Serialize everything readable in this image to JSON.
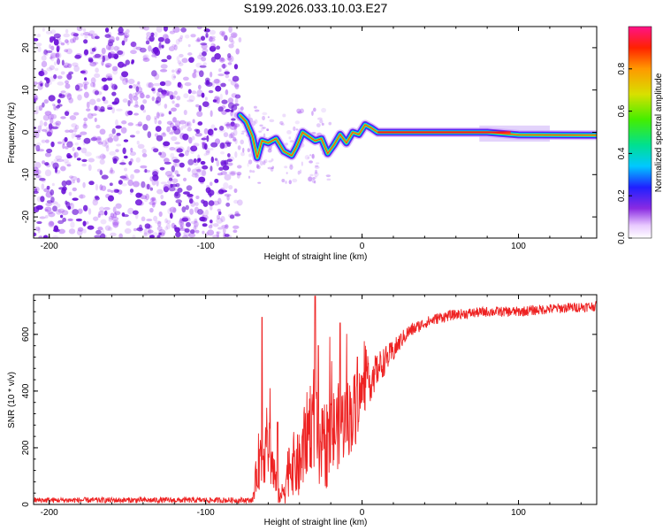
{
  "title": "S199.2026.033.10.03.E27",
  "colors": {
    "snr_line": "#ee2222",
    "speckle": "#9a3df0",
    "speckle_dark": "#6a10d8",
    "axis": "#000000"
  },
  "chart_data": [
    {
      "type": "heatmap",
      "title": "S199.2026.033.10.03.E27",
      "xlabel": "Height of straight line (km)",
      "ylabel": "Frequency (Hz)",
      "xlim": [
        -210,
        150
      ],
      "ylim": [
        -25,
        25
      ],
      "x_ticks": [
        -200,
        -100,
        0,
        100
      ],
      "y_ticks": [
        -20,
        -10,
        0,
        10,
        20
      ],
      "noise_region_x": [
        -210,
        -78
      ],
      "trace": [
        {
          "x": -78,
          "y": 4.0
        },
        {
          "x": -74,
          "y": 2.5
        },
        {
          "x": -70,
          "y": -1.0
        },
        {
          "x": -67,
          "y": -6.0
        },
        {
          "x": -64,
          "y": -2.0
        },
        {
          "x": -60,
          "y": -2.5
        },
        {
          "x": -55,
          "y": -1.5
        },
        {
          "x": -50,
          "y": -4.5
        },
        {
          "x": -45,
          "y": -5.5
        },
        {
          "x": -42,
          "y": -3.5
        },
        {
          "x": -38,
          "y": 0.0
        },
        {
          "x": -34,
          "y": -1.0
        },
        {
          "x": -30,
          "y": -2.0
        },
        {
          "x": -26,
          "y": -1.5
        },
        {
          "x": -22,
          "y": -5.0
        },
        {
          "x": -18,
          "y": -3.0
        },
        {
          "x": -14,
          "y": -0.5
        },
        {
          "x": -10,
          "y": -2.5
        },
        {
          "x": -6,
          "y": 0.0
        },
        {
          "x": -2,
          "y": -0.5
        },
        {
          "x": 2,
          "y": 1.8
        },
        {
          "x": 6,
          "y": 1.0
        },
        {
          "x": 10,
          "y": 0.0
        },
        {
          "x": 40,
          "y": 0.0
        },
        {
          "x": 80,
          "y": 0.0
        },
        {
          "x": 100,
          "y": -0.6
        },
        {
          "x": 150,
          "y": -0.7
        }
      ],
      "colorbar": {
        "label": "Normalized spectral amplitude",
        "range": [
          0,
          1
        ],
        "ticks": [
          0.0,
          0.2,
          0.4,
          0.6,
          0.8
        ],
        "tick_labels": [
          "0.0",
          "0.2",
          "0.4",
          "0.6",
          "0.8"
        ]
      }
    },
    {
      "type": "line",
      "xlabel": "Height of straight line (km)",
      "ylabel": "SNR (10 * v/v)",
      "xlim": [
        -210,
        150
      ],
      "ylim": [
        0,
        740
      ],
      "x_ticks": [
        -200,
        -100,
        0,
        100
      ],
      "y_ticks": [
        0,
        200,
        400,
        600
      ],
      "series": [
        {
          "name": "SNR",
          "x": [
            -210,
            -150,
            -100,
            -70,
            -66,
            -60,
            -55,
            -52,
            -50,
            -46,
            -40,
            -34,
            -30,
            -28,
            -25,
            -20,
            -15,
            -10,
            -5,
            0,
            5,
            10,
            15,
            20,
            25,
            30,
            40,
            50,
            60,
            80,
            100,
            120,
            150
          ],
          "values": [
            15,
            15,
            15,
            15,
            160,
            220,
            70,
            20,
            60,
            150,
            130,
            280,
            320,
            150,
            200,
            240,
            280,
            300,
            330,
            400,
            430,
            480,
            510,
            540,
            580,
            610,
            640,
            660,
            670,
            680,
            680,
            690,
            700
          ],
          "noise_amp": [
            10,
            10,
            10,
            10,
            110,
            140,
            70,
            20,
            70,
            110,
            120,
            160,
            200,
            120,
            160,
            170,
            150,
            140,
            140,
            90,
            70,
            60,
            50,
            40,
            30,
            25,
            20,
            20,
            18,
            18,
            18,
            18,
            18
          ],
          "spikes": [
            {
              "x": -64,
              "y": 660
            },
            {
              "x": -54,
              "y": 290
            },
            {
              "x": -30,
              "y": 735
            },
            {
              "x": -28,
              "y": 560
            },
            {
              "x": -14,
              "y": 640
            },
            {
              "x": -3,
              "y": 520
            }
          ]
        }
      ]
    }
  ]
}
